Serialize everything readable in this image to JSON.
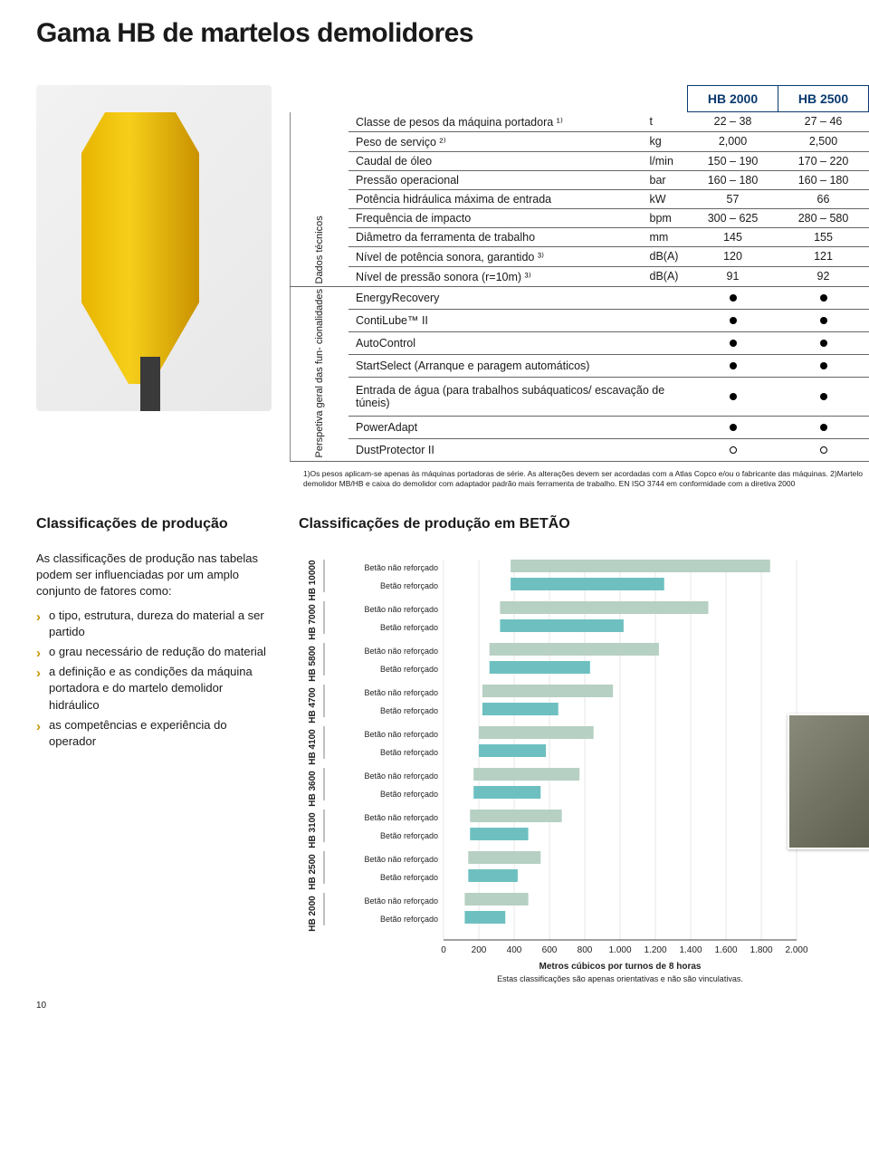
{
  "page_title": "Gama HB de martelos demolidores",
  "spec_table": {
    "side_label_1": "Dados técnicos",
    "side_label_2": "Perspetiva geral das fun-\ncionalidades",
    "model_cols": [
      "HB 2000",
      "HB 2500"
    ],
    "rows_tech": [
      {
        "label": "Classe de pesos da máquina portadora ¹⁾",
        "unit": "t",
        "v": [
          "22 – 38",
          "27 – 46"
        ]
      },
      {
        "label": "Peso de serviço ²⁾",
        "unit": "kg",
        "v": [
          "2,000",
          "2,500"
        ]
      },
      {
        "label": "Caudal de óleo",
        "unit": "l/min",
        "v": [
          "150 – 190",
          "170 – 220"
        ]
      },
      {
        "label": "Pressão operacional",
        "unit": "bar",
        "v": [
          "160 – 180",
          "160 – 180"
        ]
      },
      {
        "label": "Potência hidráulica máxima de entrada",
        "unit": "kW",
        "v": [
          "57",
          "66"
        ]
      },
      {
        "label": "Frequência de impacto",
        "unit": "bpm",
        "v": [
          "300 – 625",
          "280 – 580"
        ]
      },
      {
        "label": "Diâmetro da ferramenta de trabalho",
        "unit": "mm",
        "v": [
          "145",
          "155"
        ]
      },
      {
        "label": "Nível de potência sonora, garantido ³⁾",
        "unit": "dB(A)",
        "v": [
          "120",
          "121"
        ]
      },
      {
        "label": "Nível de pressão sonora (r=10m) ³⁾",
        "unit": "dB(A)",
        "v": [
          "91",
          "92"
        ]
      }
    ],
    "rows_feat": [
      {
        "label": "EnergyRecovery",
        "v": [
          "dot",
          "dot"
        ]
      },
      {
        "label": "ContiLube™ II",
        "v": [
          "dot",
          "dot"
        ]
      },
      {
        "label": "AutoControl",
        "v": [
          "dot",
          "dot"
        ]
      },
      {
        "label": "StartSelect (Arranque e paragem automáticos)",
        "v": [
          "dot",
          "dot"
        ]
      },
      {
        "label": "Entrada de água (para trabalhos subáquaticos/ escavação de túneis)",
        "v": [
          "dot",
          "dot"
        ]
      },
      {
        "label": "PowerAdapt",
        "v": [
          "dot",
          "dot"
        ]
      },
      {
        "label": "DustProtector II",
        "v": [
          "circ",
          "circ"
        ]
      }
    ]
  },
  "footnotes": "1)Os pesos aplicam-se apenas às máquinas portadoras de série. As alterações devem ser acordadas com a Atlas Copco e/ou o fabricante das máquinas. 2)Martelo demolidor MB/HB e caixa do demolidor com adaptador padrão mais ferramenta de trabalho. EN ISO 3744 em conformidade com a diretiva 2000",
  "side_heading": "Classificações de produção",
  "side_intro": "As classificações de produção nas tabelas podem ser influenciadas por um amplo conjunto de fatores como:",
  "side_bullets": [
    "o tipo, estrutura, dureza do material a ser partido",
    "o grau necessário de redução do material",
    "a definição e as condições da máquina portadora e do martelo demolidor hidráulico",
    "as competências e experiência do operador"
  ],
  "chart": {
    "title": "Classificações de produção em BETÃO",
    "x_label": "Metros cúbicos por turnos de 8 horas",
    "x_note": "Estas classificações são apenas orientativas e não são vinculativas.",
    "x_ticks": [
      0,
      200,
      400,
      600,
      800,
      "1.000",
      "1.200",
      "1.400",
      "1.600",
      "1.800",
      "2.000"
    ],
    "x_max": 2000,
    "colors": {
      "nonreinforced": "#b6d0c3",
      "reinforced": "#6ec0c0",
      "gridline": "#888",
      "text": "#222"
    },
    "row_label_nr": "Betão não reforçado",
    "row_label_r": "Betão reforçado",
    "groups": [
      {
        "model": "HB 10000",
        "nr": [
          380,
          1850
        ],
        "r": [
          380,
          1250
        ]
      },
      {
        "model": "HB 7000",
        "nr": [
          320,
          1500
        ],
        "r": [
          320,
          1020
        ]
      },
      {
        "model": "HB 5800",
        "nr": [
          260,
          1220
        ],
        "r": [
          260,
          830
        ]
      },
      {
        "model": "HB 4700",
        "nr": [
          220,
          960
        ],
        "r": [
          220,
          650
        ]
      },
      {
        "model": "HB 4100",
        "nr": [
          200,
          850
        ],
        "r": [
          200,
          580
        ]
      },
      {
        "model": "HB 3600",
        "nr": [
          170,
          770
        ],
        "r": [
          170,
          550
        ]
      },
      {
        "model": "HB 3100",
        "nr": [
          150,
          670
        ],
        "r": [
          150,
          480
        ]
      },
      {
        "model": "HB 2500",
        "nr": [
          140,
          550
        ],
        "r": [
          140,
          420
        ]
      },
      {
        "model": "HB 2000",
        "nr": [
          120,
          480
        ],
        "r": [
          120,
          350
        ]
      }
    ]
  },
  "page_number": "10"
}
